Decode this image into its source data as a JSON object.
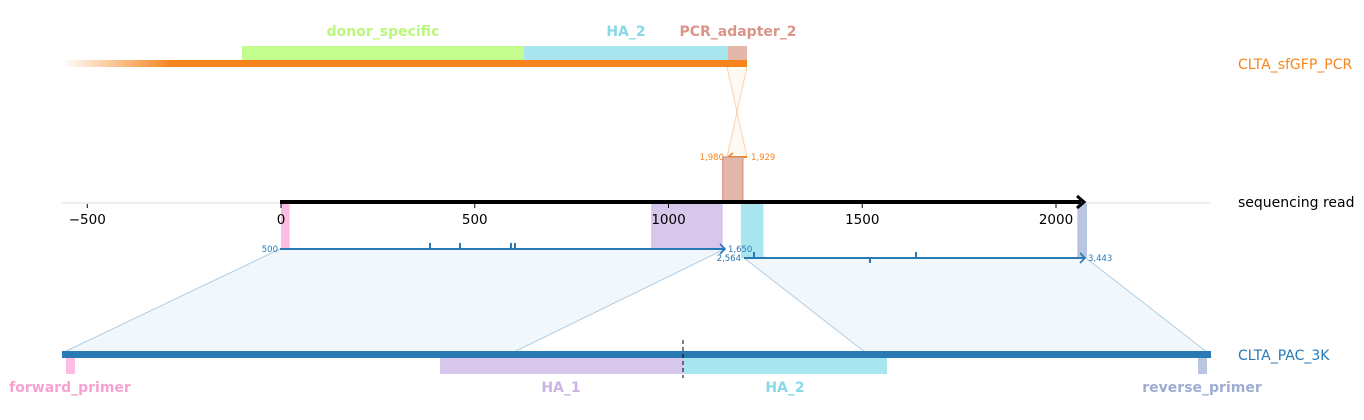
{
  "colors": {
    "donor_specific": "#c3fd8d",
    "donor_specific_label": "#b9f97a",
    "ha1": "#d8c7ec",
    "ha1_label": "#c9b4e3",
    "ha2": "#a8e5ee",
    "ha2_label": "#87d9e7",
    "pcr_adapter": "#e3b6aa",
    "pcr_adapter_label": "#d99587",
    "forward_primer": "#fdbde2",
    "forward_primer_label": "#f7a1d3",
    "reverse_primer": "#b9c5e1",
    "reverse_primer_label": "#9eacd1",
    "orange": "#f6841d",
    "blue": "#2879b4",
    "read": "#000000"
  },
  "tracks": {
    "top": {
      "name": "CLTA_sfGFP_PCR",
      "features": [
        {
          "key": "donor_specific",
          "label": "donor_specific"
        },
        {
          "key": "ha2",
          "label": "HA_2"
        },
        {
          "key": "pcr_adapter",
          "label": "PCR_adapter_2"
        }
      ],
      "breakpoints": {
        "left": "1,980",
        "right": "1,929"
      }
    },
    "middle": {
      "name": "sequencing read",
      "blue_segment_1": {
        "start_label": "500",
        "end_label": "1,650"
      },
      "blue_segment_2": {
        "start_label": "2,564",
        "end_label": "3,443"
      }
    },
    "bottom": {
      "name": "CLTA_PAC_3K",
      "features": [
        {
          "key": "forward_primer",
          "label": "forward_primer"
        },
        {
          "key": "ha1",
          "label": "HA_1"
        },
        {
          "key": "ha2",
          "label": "HA_2"
        },
        {
          "key": "reverse_primer",
          "label": "reverse_primer"
        }
      ]
    }
  },
  "chart_data": {
    "type": "alignment-diagram",
    "x_axis": {
      "ticks": [
        -500,
        0,
        500,
        1000,
        1500,
        2000
      ],
      "tick_labels": [
        "−500",
        "0",
        "500",
        "1000",
        "1500",
        "2000"
      ],
      "range": [
        -565,
        2395
      ]
    },
    "read_features": [
      {
        "key": "forward_primer",
        "start": 0,
        "end": 22
      },
      {
        "key": "ha1",
        "start": 955,
        "end": 1140
      },
      {
        "key": "pcr_adapter",
        "start": 1140,
        "end": 1192
      },
      {
        "key": "ha2",
        "start": 1187,
        "end": 1245
      },
      {
        "key": "reverse_primer",
        "start": 2055,
        "end": 2080
      }
    ]
  }
}
